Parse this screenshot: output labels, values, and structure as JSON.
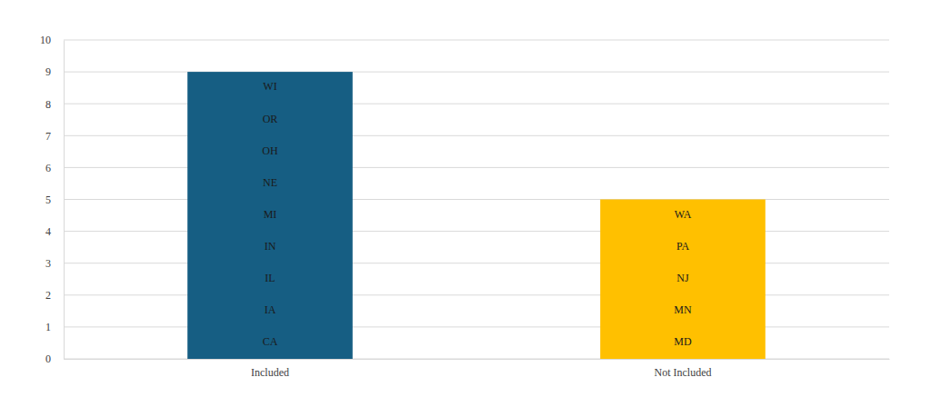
{
  "chart_data": {
    "type": "bar",
    "categories": [
      "Included",
      "Not Included"
    ],
    "values": [
      9,
      5
    ],
    "colors": [
      "#165e83",
      "#ffc000"
    ],
    "annotations": [
      [
        "CA",
        "IA",
        "IL",
        "IN",
        "MI",
        "NE",
        "OH",
        "OR",
        "WI"
      ],
      [
        "MD",
        "MN",
        "NJ",
        "PA",
        "WA"
      ]
    ],
    "ylim": [
      0,
      10
    ],
    "yticks": [
      0,
      1,
      2,
      3,
      4,
      5,
      6,
      7,
      8,
      9,
      10
    ],
    "grid": true
  }
}
